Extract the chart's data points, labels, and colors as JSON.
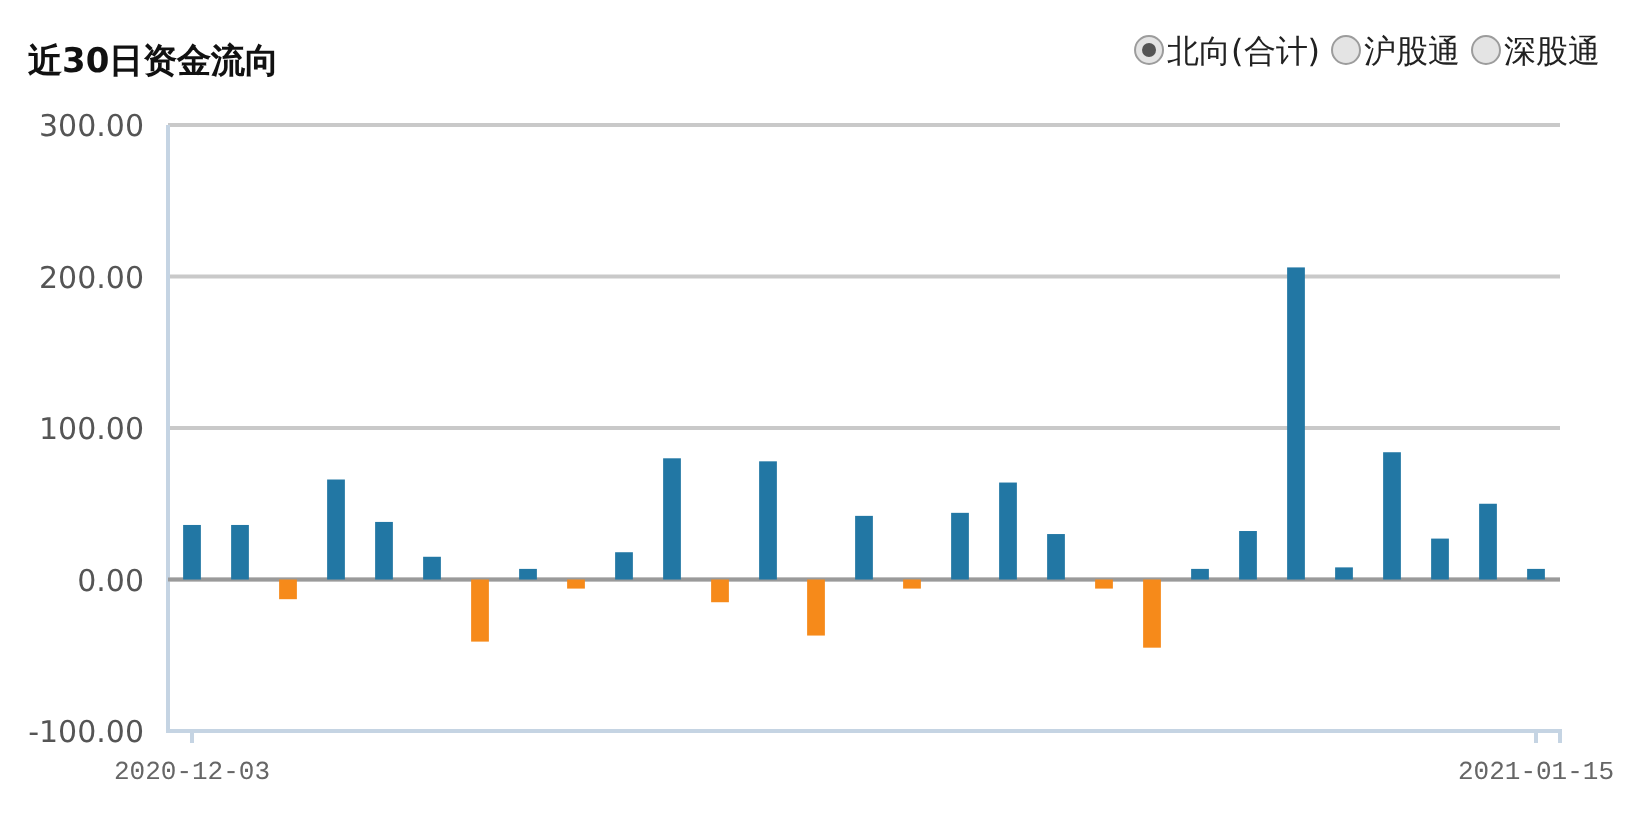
{
  "chart_data": {
    "type": "bar",
    "title": "近30日资金流向",
    "categories": [
      "2020-12-03",
      null,
      null,
      null,
      null,
      null,
      null,
      null,
      null,
      null,
      null,
      null,
      null,
      null,
      null,
      null,
      null,
      null,
      null,
      null,
      null,
      null,
      null,
      null,
      null,
      null,
      null,
      null,
      "2021-01-15"
    ],
    "series": [
      {
        "name": "北向(合计)",
        "colors": [
          "#2277a4",
          "#2277a4",
          "#f68a1a",
          "#2277a4",
          "#2277a4",
          "#2277a4",
          "#f68a1a",
          "#2277a4",
          "#f68a1a",
          "#2277a4",
          "#2277a4",
          "#f68a1a",
          "#2277a4",
          "#f68a1a",
          "#2277a4",
          "#f68a1a",
          "#2277a4",
          "#2277a4",
          "#2277a4",
          "#f68a1a",
          "#f68a1a",
          "#2277a4",
          "#2277a4",
          "#2277a4",
          "#2277a4",
          "#2277a4",
          "#2277a4",
          "#2277a4",
          "#2277a4"
        ],
        "values": [
          36,
          36,
          -13,
          66,
          38,
          15,
          -41,
          7,
          -6,
          18,
          80,
          -15,
          78,
          -37,
          42,
          -6,
          44,
          64,
          30,
          -6,
          -45,
          7,
          32,
          206,
          8,
          84,
          27,
          50,
          7
        ]
      }
    ],
    "ylim": [
      -100,
      300
    ],
    "yticks": [
      {
        "value": -100,
        "label": "-100.00"
      },
      {
        "value": 0,
        "label": "0.00"
      },
      {
        "value": 100,
        "label": "100.00"
      },
      {
        "value": 200,
        "label": "200.00"
      },
      {
        "value": 300,
        "label": "300.00"
      }
    ],
    "grid": "y",
    "legend": "top right",
    "annotations": [
      "沪股通",
      "深股通"
    ]
  }
}
